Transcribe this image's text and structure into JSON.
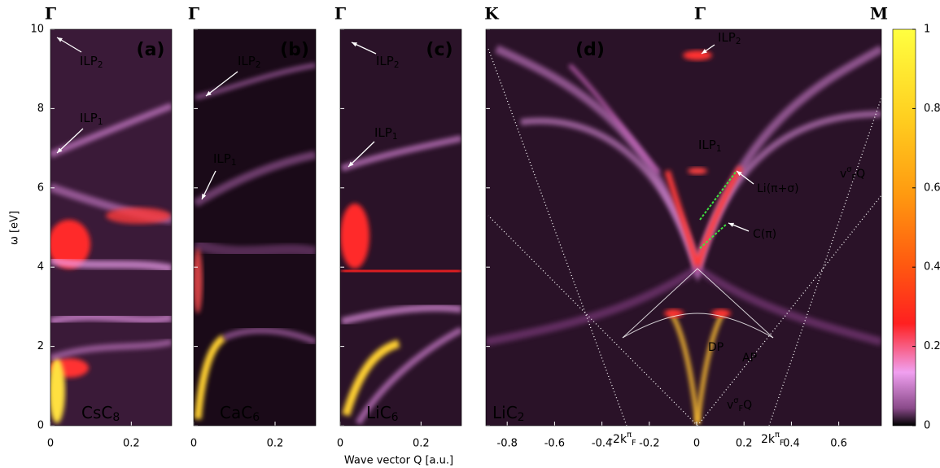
{
  "xlabel": "Wave vector Q [a.u.]",
  "chart_data": [
    {
      "type": "heatmap",
      "panel_label": "(a)",
      "sample": {
        "base": "CsC",
        "sub": "8"
      },
      "top_labels": [
        "Γ"
      ],
      "ylabel": "ω [eV]",
      "ytick_labels": true,
      "xlim": [
        0,
        0.3
      ],
      "xticks": [
        0,
        0.2
      ],
      "ylim": [
        0,
        10
      ],
      "yticks": [
        0,
        2,
        4,
        6,
        8,
        10
      ],
      "annotations": [
        {
          "base": "ILP",
          "sub": "2"
        },
        {
          "base": "ILP",
          "sub": "1"
        }
      ]
    },
    {
      "type": "heatmap",
      "panel_label": "(b)",
      "sample": {
        "base": "CaC",
        "sub": "6"
      },
      "top_labels": [
        "Γ"
      ],
      "ytick_labels": false,
      "xlim": [
        0,
        0.3
      ],
      "xticks": [
        0,
        0.2
      ],
      "ylim": [
        0,
        10
      ],
      "yticks": [
        0,
        2,
        4,
        6,
        8,
        10
      ],
      "annotations": [
        {
          "base": "ILP",
          "sub": "2"
        },
        {
          "base": "ILP",
          "sub": "1"
        }
      ]
    },
    {
      "type": "heatmap",
      "panel_label": "(c)",
      "sample": {
        "base": "LiC",
        "sub": "6"
      },
      "top_labels": [
        "Γ"
      ],
      "ytick_labels": false,
      "xlim": [
        0,
        0.3
      ],
      "xticks": [
        0,
        0.2
      ],
      "ylim": [
        0,
        10
      ],
      "yticks": [
        0,
        2,
        4,
        6,
        8,
        10
      ],
      "annotations": [
        {
          "base": "ILP",
          "sub": "2"
        },
        {
          "base": "ILP",
          "sub": "1"
        }
      ]
    },
    {
      "type": "heatmap",
      "panel_label": "(d)",
      "sample": {
        "base": "LiC",
        "sub": "2"
      },
      "top_labels": [
        "K",
        "Γ",
        "M"
      ],
      "ytick_labels": false,
      "xlim": [
        -0.89,
        0.78
      ],
      "xticks": [
        -0.8,
        -0.6,
        -0.4,
        -0.2,
        0,
        0.2,
        0.4,
        0.6
      ],
      "ylim": [
        0,
        10
      ],
      "yticks": [
        0,
        2,
        4,
        6,
        8,
        10
      ],
      "annotations": [
        {
          "base": "ILP",
          "sub": "2"
        },
        {
          "base": "ILP",
          "sub": "1"
        },
        {
          "base": "Li(π+σ)"
        },
        {
          "base": "C(π)"
        },
        {
          "base": "DP"
        },
        {
          "base": "AP"
        },
        {
          "base": "v",
          "sup": "σ",
          "sub": "F",
          "tail": "Q",
          "color": "#e01010"
        },
        {
          "base": "v",
          "sup": "σ",
          "sub": "F",
          "tail": "Q",
          "color": "#e01010"
        },
        {
          "base": "-2k",
          "sup": "π",
          "sub": "F",
          "color": "#e020e0"
        },
        {
          "base": "2k",
          "sup": "π",
          "sub": "F",
          "color": "#e020e0"
        }
      ],
      "colorbar": {
        "lim": [
          0,
          1
        ],
        "ticks": [
          0,
          0.2,
          0.4,
          0.6,
          0.8,
          1
        ],
        "colormap": [
          "#000000",
          "#8a4a8a",
          "#f0a0f0",
          "#ff2020",
          "#ff5a10",
          "#ff9a10",
          "#ffd020",
          "#ffff40"
        ]
      }
    }
  ]
}
